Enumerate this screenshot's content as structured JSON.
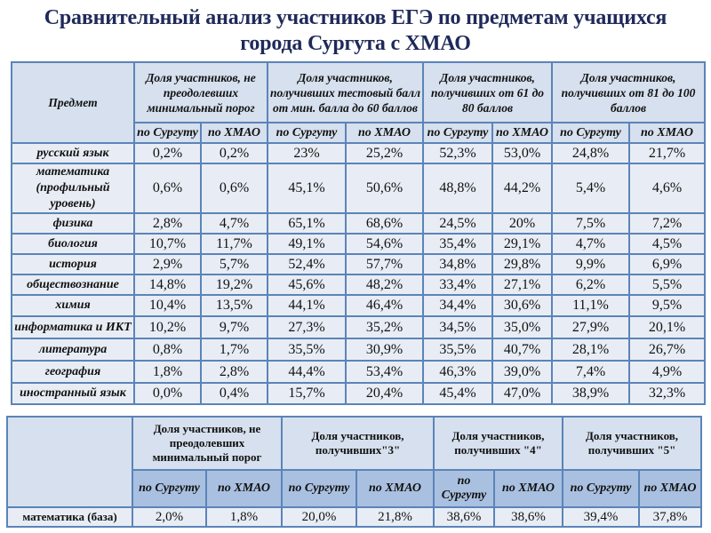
{
  "title_line1": "Сравнительный анализ участников ЕГЭ по предметам учащихся",
  "title_line2": "города Сургута с ХМАО",
  "table1": {
    "subject_header": "Предмет",
    "groups": [
      "Доля участников, не преодолевших минимальный порог",
      "Доля участников, получивших тестовый балл от мин. балла до 60 баллов",
      "Доля участников, получивших от 61 до 80 баллов",
      "Доля участников, получивших от 81 до 100 баллов"
    ],
    "sub_surgut": "по Сургуту",
    "sub_hmao": "по ХМАО",
    "rows": [
      {
        "subject": "русский язык",
        "values": [
          "0,2%",
          "0,2%",
          "23%",
          "25,2%",
          "52,3%",
          "53,0%",
          "24,8%",
          "21,7%"
        ]
      },
      {
        "subject": "математика (профильный уровень)",
        "values": [
          "0,6%",
          "0,6%",
          "45,1%",
          "50,6%",
          "48,8%",
          "44,2%",
          "5,4%",
          "4,6%"
        ]
      },
      {
        "subject": "физика",
        "values": [
          "2,8%",
          "4,7%",
          "65,1%",
          "68,6%",
          "24,5%",
          "20%",
          "7,5%",
          "7,2%"
        ]
      },
      {
        "subject": "биология",
        "values": [
          "10,7%",
          "11,7%",
          "49,1%",
          "54,6%",
          "35,4%",
          "29,1%",
          "4,7%",
          "4,5%"
        ]
      },
      {
        "subject": "история",
        "values": [
          "2,9%",
          "5,7%",
          "52,4%",
          "57,7%",
          "34,8%",
          "29,8%",
          "9,9%",
          "6,9%"
        ]
      },
      {
        "subject": "обществознание",
        "values": [
          "14,8%",
          "19,2%",
          "45,6%",
          "48,2%",
          "33,4%",
          "27,1%",
          "6,2%",
          "5,5%"
        ]
      },
      {
        "subject": "химия",
        "values": [
          "10,4%",
          "13,5%",
          "44,1%",
          "46,4%",
          "34,4%",
          "30,6%",
          "11,1%",
          "9,5%"
        ]
      },
      {
        "subject": "информатика и ИКТ",
        "values": [
          "10,2%",
          "9,7%",
          "27,3%",
          "35,2%",
          "34,5%",
          "35,0%",
          "27,9%",
          "20,1%"
        ]
      },
      {
        "subject": "литература",
        "values": [
          "0,8%",
          "1,7%",
          "35,5%",
          "30,9%",
          "35,5%",
          "40,7%",
          "28,1%",
          "26,7%"
        ]
      },
      {
        "subject": "география",
        "values": [
          "1,8%",
          "2,8%",
          "44,4%",
          "53,4%",
          "46,3%",
          "39,0%",
          "7,4%",
          "4,9%"
        ]
      },
      {
        "subject": "иностранный язык",
        "values": [
          "0,0%",
          "0,4%",
          "15,7%",
          "20,4%",
          "45,4%",
          "47,0%",
          "38,9%",
          "32,3%"
        ]
      }
    ]
  },
  "table2": {
    "groups": [
      "Доля участников, не преодолевших минимальный порог",
      "Доля участников, получивших\"3\"",
      "Доля участников, получивших \"4\"",
      "Доля участников, получивших \"5\""
    ],
    "sub_surgut": "по Сургуту",
    "sub_hmao": "по ХМАО",
    "rows": [
      {
        "subject": "математика (база)",
        "values": [
          "2,0%",
          "1,8%",
          "20,0%",
          "21,8%",
          "38,6%",
          "38,6%",
          "39,4%",
          "37,8%"
        ]
      }
    ]
  }
}
